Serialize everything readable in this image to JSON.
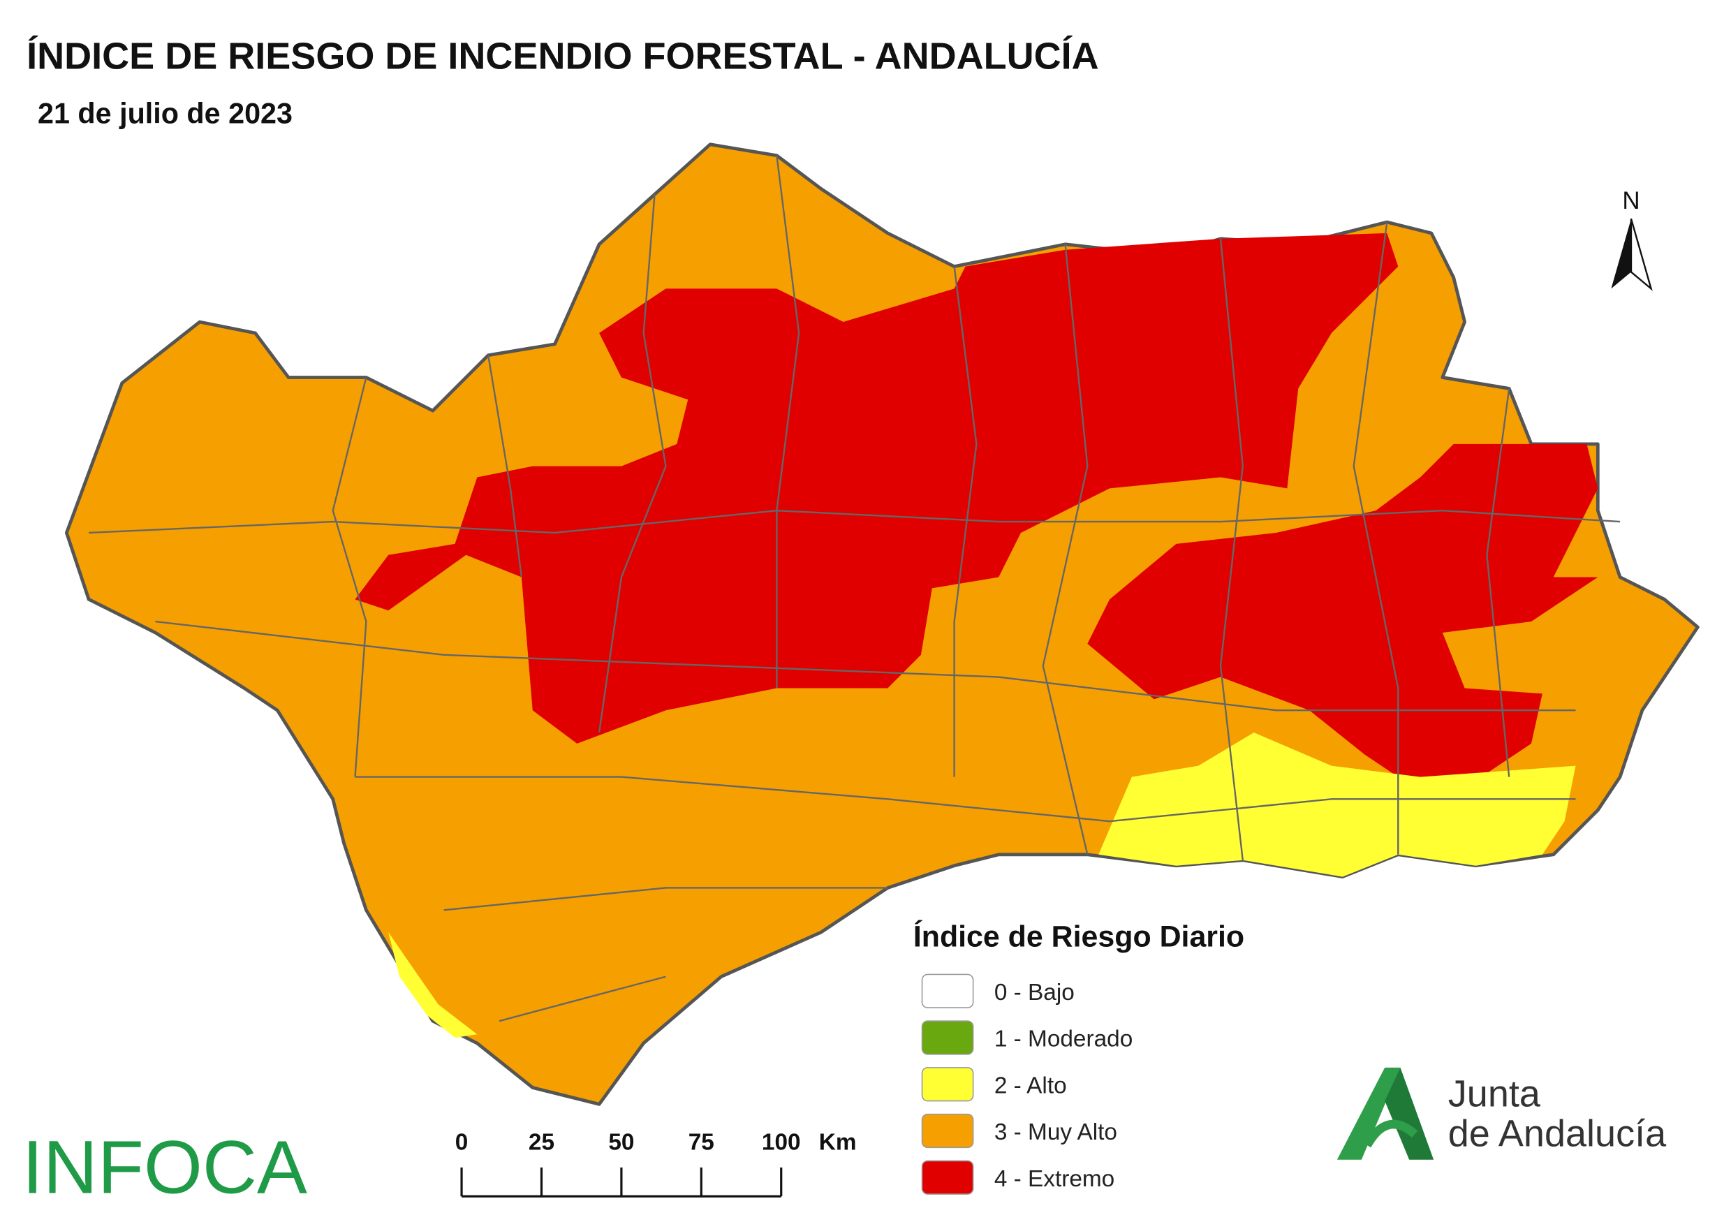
{
  "header": {
    "title": "ÍNDICE DE RIESGO DE INCENDIO FORESTAL - ANDALUCÍA",
    "date": "21 de julio de 2023"
  },
  "north_arrow": "N",
  "legend": {
    "title": "Índice de Riesgo Diario",
    "items": [
      {
        "label": "0 - Bajo",
        "color": "#ffffff"
      },
      {
        "label": "1 - Moderado",
        "color": "#6aa80f"
      },
      {
        "label": "2 - Alto",
        "color": "#ffff33"
      },
      {
        "label": "3 - Muy Alto",
        "color": "#f5a000"
      },
      {
        "label": "4 - Extremo",
        "color": "#e00000"
      }
    ]
  },
  "scale_bar": {
    "ticks": [
      0,
      25,
      50,
      75,
      100
    ],
    "unit": "Km"
  },
  "logos": {
    "infoca": "INFOCA",
    "junta": [
      "Junta",
      "de Andalucía"
    ]
  }
}
